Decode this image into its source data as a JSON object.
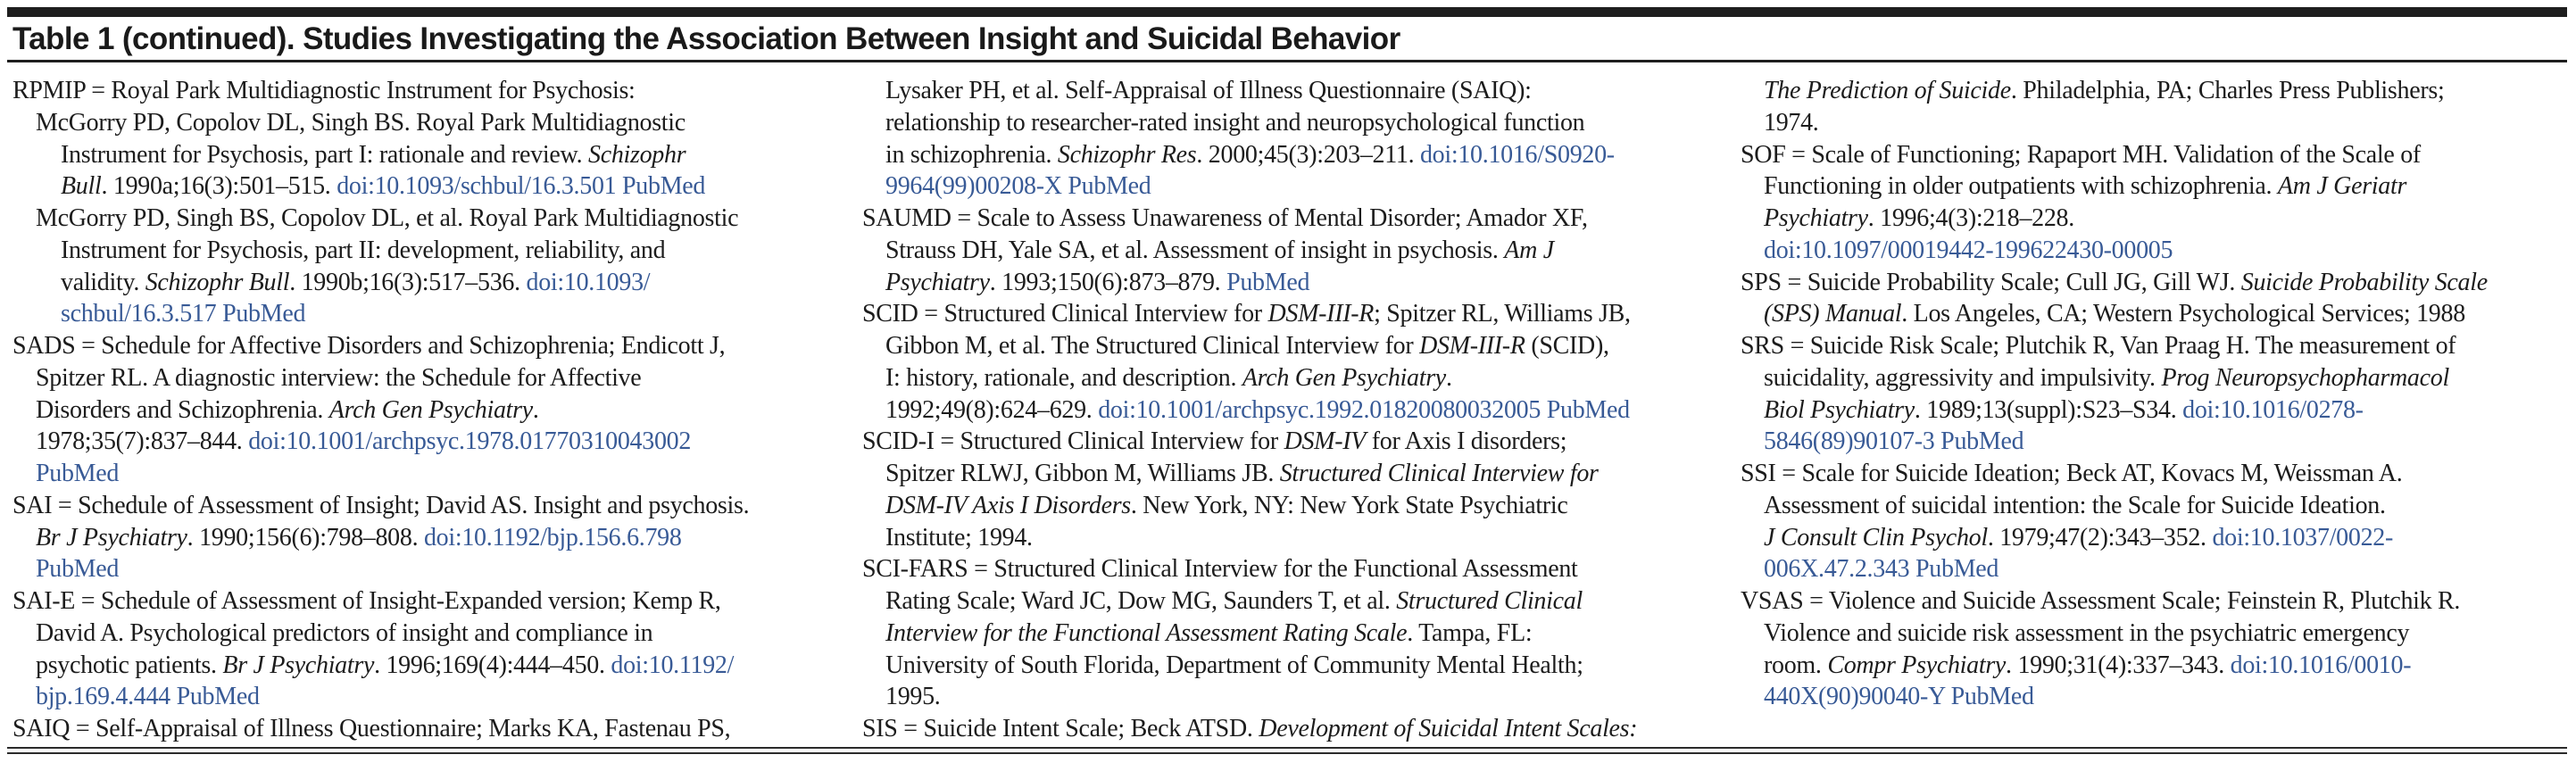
{
  "title": "Table 1 (continued). Studies Investigating the Association Between Insight and Suicidal Behavior",
  "colors": {
    "link": "#385a96",
    "text": "#1c1c1c",
    "rule": "#1e1e1e"
  },
  "columns": [
    {
      "lines": [
        {
          "indent": 0,
          "segs": [
            [
              "RPMIP = Royal Park Multidiagnostic Instrument for Psychosis:",
              "p"
            ]
          ]
        },
        {
          "indent": 1,
          "segs": [
            [
              "McGorry PD, Copolov DL, Singh BS. Royal Park Multidiagnostic",
              "p"
            ]
          ]
        },
        {
          "indent": 2,
          "segs": [
            [
              "Instrument for Psychosis, part I: rationale and review. ",
              "p"
            ],
            [
              "Schizophr",
              "i"
            ]
          ]
        },
        {
          "indent": 2,
          "segs": [
            [
              "Bull",
              "i"
            ],
            [
              ". 1990a;16(3):501–515. ",
              "p"
            ],
            [
              "doi:10.1093/schbul/16.3.501 PubMed",
              "l"
            ]
          ]
        },
        {
          "indent": 1,
          "segs": [
            [
              "McGorry PD, Singh BS, Copolov DL, et al. Royal Park Multidiagnostic",
              "p"
            ]
          ]
        },
        {
          "indent": 2,
          "segs": [
            [
              "Instrument for Psychosis, part II: development, reliability, and",
              "p"
            ]
          ]
        },
        {
          "indent": 2,
          "segs": [
            [
              "validity. ",
              "p"
            ],
            [
              "Schizophr Bull",
              "i"
            ],
            [
              ". 1990b;16(3):517–536. ",
              "p"
            ],
            [
              "doi:10.1093/",
              "l"
            ]
          ]
        },
        {
          "indent": 2,
          "segs": [
            [
              "schbul/16.3.517 PubMed",
              "l"
            ]
          ]
        },
        {
          "indent": 0,
          "segs": [
            [
              "SADS = Schedule for Affective Disorders and Schizophrenia; Endicott J,",
              "p"
            ]
          ]
        },
        {
          "indent": 1,
          "segs": [
            [
              "Spitzer RL. A diagnostic interview: the Schedule for Affective",
              "p"
            ]
          ]
        },
        {
          "indent": 1,
          "segs": [
            [
              "Disorders and Schizophrenia. ",
              "p"
            ],
            [
              "Arch Gen Psychiatry",
              "i"
            ],
            [
              ".",
              "p"
            ]
          ]
        },
        {
          "indent": 1,
          "segs": [
            [
              "1978;35(7):837–844. ",
              "p"
            ],
            [
              "doi:10.1001/archpsyc.1978.01770310043002",
              "l"
            ]
          ]
        },
        {
          "indent": 1,
          "segs": [
            [
              "PubMed",
              "l"
            ]
          ]
        },
        {
          "indent": 0,
          "segs": [
            [
              "SAI = Schedule of Assessment of Insight; David AS. Insight and psychosis.",
              "p"
            ]
          ]
        },
        {
          "indent": 1,
          "segs": [
            [
              "Br J Psychiatry",
              "i"
            ],
            [
              ". 1990;156(6):798–808. ",
              "p"
            ],
            [
              "doi:10.1192/bjp.156.6.798",
              "l"
            ]
          ]
        },
        {
          "indent": 1,
          "segs": [
            [
              "PubMed",
              "l"
            ]
          ]
        },
        {
          "indent": 0,
          "segs": [
            [
              "SAI-E = Schedule of Assessment of Insight-Expanded version; Kemp R,",
              "p"
            ]
          ]
        },
        {
          "indent": 1,
          "segs": [
            [
              "David A. Psychological predictors of insight and compliance in",
              "p"
            ]
          ]
        },
        {
          "indent": 1,
          "segs": [
            [
              "psychotic patients. ",
              "p"
            ],
            [
              "Br J Psychiatry",
              "i"
            ],
            [
              ". 1996;169(4):444–450. ",
              "p"
            ],
            [
              "doi:10.1192/",
              "l"
            ]
          ]
        },
        {
          "indent": 1,
          "segs": [
            [
              "bjp.169.4.444 PubMed",
              "l"
            ]
          ]
        },
        {
          "indent": 0,
          "segs": [
            [
              "SAIQ = Self-Appraisal of Illness Questionnaire; Marks KA, Fastenau PS,",
              "p"
            ]
          ]
        }
      ]
    },
    {
      "lines": [
        {
          "indent": 1,
          "segs": [
            [
              "Lysaker PH, et al. Self-Appraisal of Illness Questionnaire (SAIQ):",
              "p"
            ]
          ]
        },
        {
          "indent": 1,
          "segs": [
            [
              "relationship to researcher-rated insight and neuropsychological function",
              "p"
            ]
          ]
        },
        {
          "indent": 1,
          "segs": [
            [
              "in schizophrenia. ",
              "p"
            ],
            [
              "Schizophr Res",
              "i"
            ],
            [
              ". 2000;45(3):203–211. ",
              "p"
            ],
            [
              "doi:10.1016/S0920-",
              "l"
            ]
          ]
        },
        {
          "indent": 1,
          "segs": [
            [
              "9964(99)00208-X PubMed",
              "l"
            ]
          ]
        },
        {
          "indent": 0,
          "segs": [
            [
              "SAUMD = Scale to Assess Unawareness of Mental Disorder; Amador XF,",
              "p"
            ]
          ]
        },
        {
          "indent": 1,
          "segs": [
            [
              "Strauss DH, Yale SA, et al. Assessment of insight in psychosis. ",
              "p"
            ],
            [
              "Am J",
              "i"
            ]
          ]
        },
        {
          "indent": 1,
          "segs": [
            [
              "Psychiatry",
              "i"
            ],
            [
              ". 1993;150(6):873–879. ",
              "p"
            ],
            [
              "PubMed",
              "l"
            ]
          ]
        },
        {
          "indent": 0,
          "segs": [
            [
              "SCID = Structured Clinical Interview for ",
              "p"
            ],
            [
              "DSM-III-R",
              "i"
            ],
            [
              "; Spitzer RL, Williams JB,",
              "p"
            ]
          ]
        },
        {
          "indent": 1,
          "segs": [
            [
              "Gibbon M, et al. The Structured Clinical Interview for ",
              "p"
            ],
            [
              "DSM-III-R",
              "i"
            ],
            [
              " (SCID),",
              "p"
            ]
          ]
        },
        {
          "indent": 1,
          "segs": [
            [
              "I: history, rationale, and description. ",
              "p"
            ],
            [
              "Arch Gen Psychiatry",
              "i"
            ],
            [
              ".",
              "p"
            ]
          ]
        },
        {
          "indent": 1,
          "segs": [
            [
              "1992;49(8):624–629. ",
              "p"
            ],
            [
              "doi:10.1001/archpsyc.1992.01820080032005 PubMed",
              "l"
            ]
          ]
        },
        {
          "indent": 0,
          "segs": [
            [
              "SCID-I = Structured Clinical Interview for ",
              "p"
            ],
            [
              "DSM-IV",
              "i"
            ],
            [
              " for Axis I disorders;",
              "p"
            ]
          ]
        },
        {
          "indent": 1,
          "segs": [
            [
              "Spitzer RLWJ, Gibbon M, Williams JB. ",
              "p"
            ],
            [
              "Structured Clinical Interview for",
              "i"
            ]
          ]
        },
        {
          "indent": 1,
          "segs": [
            [
              "DSM-IV Axis I Disorders",
              "i"
            ],
            [
              ". New York, NY: New York State Psychiatric",
              "p"
            ]
          ]
        },
        {
          "indent": 1,
          "segs": [
            [
              "Institute; 1994.",
              "p"
            ]
          ]
        },
        {
          "indent": 0,
          "segs": [
            [
              "SCI-FARS = Structured Clinical Interview for the Functional Assessment",
              "p"
            ]
          ]
        },
        {
          "indent": 1,
          "segs": [
            [
              "Rating Scale; Ward JC, Dow MG, Saunders T, et al. ",
              "p"
            ],
            [
              "Structured Clinical",
              "i"
            ]
          ]
        },
        {
          "indent": 1,
          "segs": [
            [
              "Interview for the Functional Assessment Rating Scale",
              "i"
            ],
            [
              ". Tampa, FL:",
              "p"
            ]
          ]
        },
        {
          "indent": 1,
          "segs": [
            [
              "University of South Florida, Department of Community Mental Health;",
              "p"
            ]
          ]
        },
        {
          "indent": 1,
          "segs": [
            [
              "1995.",
              "p"
            ]
          ]
        },
        {
          "indent": 0,
          "segs": [
            [
              "SIS = Suicide Intent Scale; Beck ATSD. ",
              "p"
            ],
            [
              "Development of Suicidal Intent Scales:",
              "i"
            ]
          ]
        }
      ]
    },
    {
      "lines": [
        {
          "indent": 1,
          "segs": [
            [
              "The Prediction of Suicide",
              "i"
            ],
            [
              ". Philadelphia, PA; Charles Press Publishers;",
              "p"
            ]
          ]
        },
        {
          "indent": 1,
          "segs": [
            [
              "1974.",
              "p"
            ]
          ]
        },
        {
          "indent": 0,
          "segs": [
            [
              "SOF = Scale of Functioning; Rapaport MH. Validation of the Scale of",
              "p"
            ]
          ]
        },
        {
          "indent": 1,
          "segs": [
            [
              "Functioning in older outpatients with schizophrenia. ",
              "p"
            ],
            [
              "Am J Geriatr",
              "i"
            ]
          ]
        },
        {
          "indent": 1,
          "segs": [
            [
              "Psychiatry",
              "i"
            ],
            [
              ". 1996;4(3):218–228.",
              "p"
            ]
          ]
        },
        {
          "indent": 1,
          "segs": [
            [
              "doi:10.1097/00019442-199622430-00005",
              "l"
            ]
          ]
        },
        {
          "indent": 0,
          "segs": [
            [
              "SPS = Suicide Probability Scale; Cull JG, Gill WJ. ",
              "p"
            ],
            [
              "Suicide Probability Scale",
              "i"
            ]
          ]
        },
        {
          "indent": 1,
          "segs": [
            [
              "(SPS) Manual",
              "i"
            ],
            [
              ". Los Angeles, CA; Western Psychological Services; 1988",
              "p"
            ]
          ]
        },
        {
          "indent": 0,
          "segs": [
            [
              "SRS = Suicide Risk Scale; Plutchik R, Van Praag H. The measurement of",
              "p"
            ]
          ]
        },
        {
          "indent": 1,
          "segs": [
            [
              "suicidality, aggressivity and impulsivity. ",
              "p"
            ],
            [
              "Prog Neuropsychopharmacol",
              "i"
            ]
          ]
        },
        {
          "indent": 1,
          "segs": [
            [
              "Biol Psychiatry",
              "i"
            ],
            [
              ". 1989;13(suppl):S23–S34. ",
              "p"
            ],
            [
              "doi:10.1016/0278-",
              "l"
            ]
          ]
        },
        {
          "indent": 1,
          "segs": [
            [
              "5846(89)90107-3 PubMed",
              "l"
            ]
          ]
        },
        {
          "indent": 0,
          "segs": [
            [
              "SSI = Scale for Suicide Ideation; Beck AT, Kovacs M, Weissman A.",
              "p"
            ]
          ]
        },
        {
          "indent": 1,
          "segs": [
            [
              "Assessment of suicidal intention: the Scale for Suicide Ideation.",
              "p"
            ]
          ]
        },
        {
          "indent": 1,
          "segs": [
            [
              "J Consult Clin Psychol",
              "i"
            ],
            [
              ". 1979;47(2):343–352. ",
              "p"
            ],
            [
              "doi:10.1037/0022-",
              "l"
            ]
          ]
        },
        {
          "indent": 1,
          "segs": [
            [
              "006X.47.2.343 PubMed",
              "l"
            ]
          ]
        },
        {
          "indent": 0,
          "segs": [
            [
              "VSAS = Violence and Suicide Assessment Scale; Feinstein R, Plutchik R.",
              "p"
            ]
          ]
        },
        {
          "indent": 1,
          "segs": [
            [
              "Violence and suicide risk assessment in the psychiatric emergency",
              "p"
            ]
          ]
        },
        {
          "indent": 1,
          "segs": [
            [
              "room. ",
              "p"
            ],
            [
              "Compr Psychiatry",
              "i"
            ],
            [
              ". 1990;31(4):337–343. ",
              "p"
            ],
            [
              "doi:10.1016/0010-",
              "l"
            ]
          ]
        },
        {
          "indent": 1,
          "segs": [
            [
              "440X(90)90040-Y PubMed",
              "l"
            ]
          ]
        }
      ]
    }
  ]
}
